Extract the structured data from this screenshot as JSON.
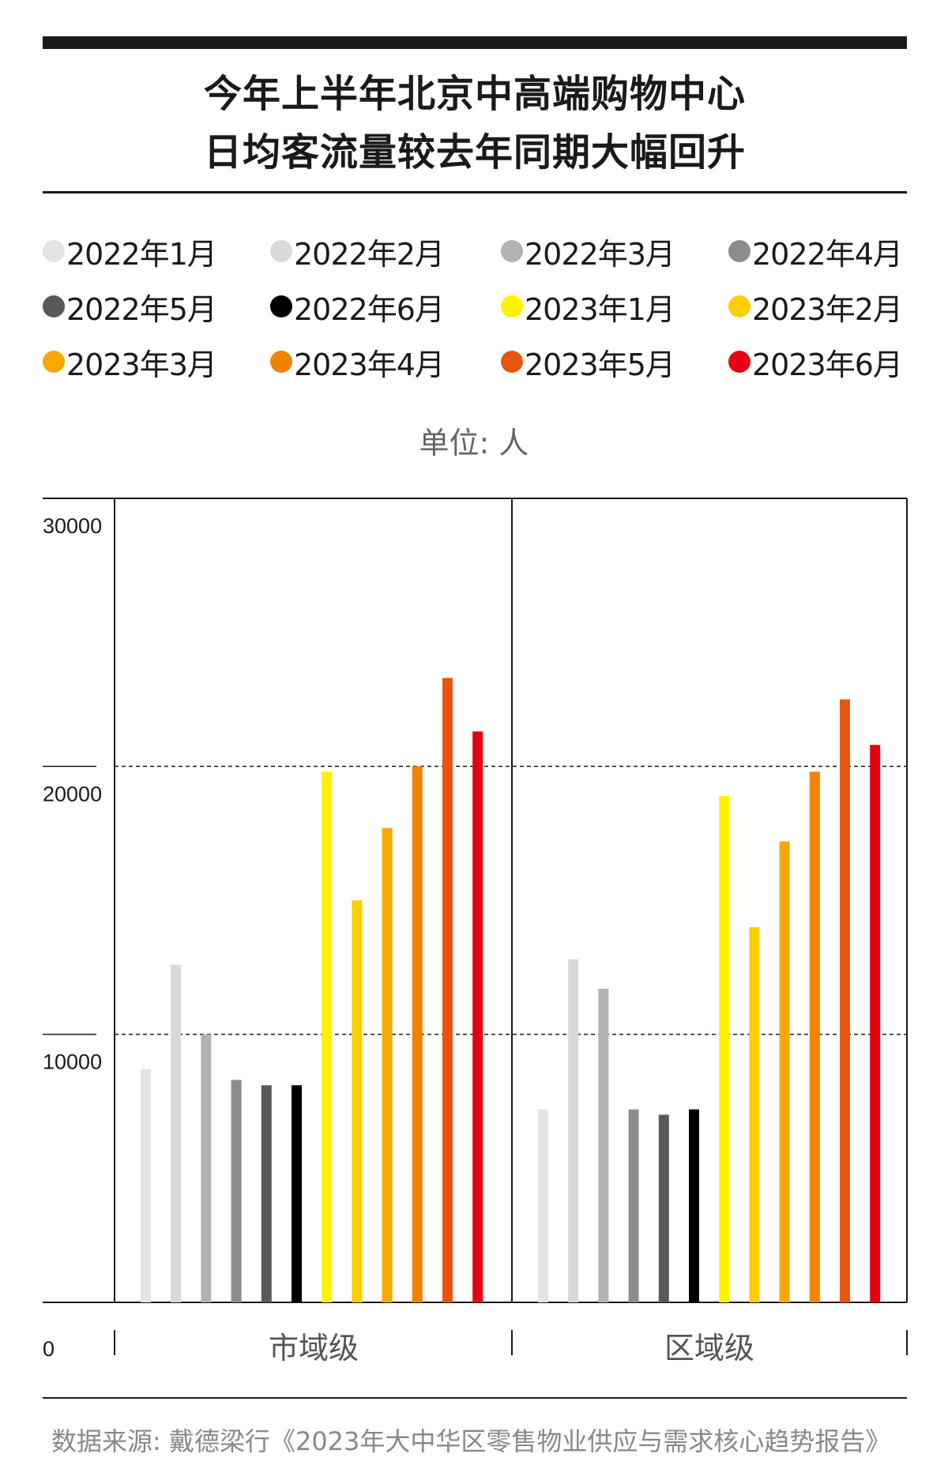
{
  "title": {
    "line1": "今年上半年北京中高端购物中心",
    "line2": "日均客流量较去年同期大幅回升"
  },
  "unit_label": "单位: 人",
  "source": "数据来源: 戴德梁行《2023年大中华区零售物业供应与需求核心趋势报告》",
  "colors": {
    "2022年1月": "#e4e4e4",
    "2022年2月": "#d9d9d9",
    "2022年3月": "#b3b3b3",
    "2022年4月": "#8c8c8c",
    "2022年5月": "#595959",
    "2022年6月": "#000000",
    "2023年1月": "#fff100",
    "2023年2月": "#fccf00",
    "2023年3月": "#f5a800",
    "2023年4月": "#f08300",
    "2023年5月": "#e85511",
    "2023年6月": "#e60012"
  },
  "chart_data": {
    "type": "bar",
    "title": "今年上半年北京中高端购物中心日均客流量较去年同期大幅回升",
    "xlabel": "",
    "ylabel": "单位: 人",
    "ylim": [
      0,
      30000
    ],
    "yticks": [
      0,
      10000,
      20000,
      30000
    ],
    "grid": "dashed at 10000 and 20000",
    "legend_position": "top",
    "categories": [
      "市域级",
      "区域级"
    ],
    "series": [
      {
        "name": "2022年1月",
        "values": [
          8700,
          7200
        ]
      },
      {
        "name": "2022年2月",
        "values": [
          12600,
          12800
        ]
      },
      {
        "name": "2022年3月",
        "values": [
          10000,
          11700
        ]
      },
      {
        "name": "2022年4月",
        "values": [
          8300,
          7200
        ]
      },
      {
        "name": "2022年5月",
        "values": [
          8100,
          7000
        ]
      },
      {
        "name": "2022年6月",
        "values": [
          8100,
          7200
        ]
      },
      {
        "name": "2023年1月",
        "values": [
          19800,
          18900
        ]
      },
      {
        "name": "2023年2月",
        "values": [
          15000,
          14000
        ]
      },
      {
        "name": "2023年3月",
        "values": [
          17700,
          17200
        ]
      },
      {
        "name": "2023年4月",
        "values": [
          20000,
          19800
        ]
      },
      {
        "name": "2023年5月",
        "values": [
          23300,
          22500
        ]
      },
      {
        "name": "2023年6月",
        "values": [
          21300,
          20800
        ]
      }
    ]
  }
}
